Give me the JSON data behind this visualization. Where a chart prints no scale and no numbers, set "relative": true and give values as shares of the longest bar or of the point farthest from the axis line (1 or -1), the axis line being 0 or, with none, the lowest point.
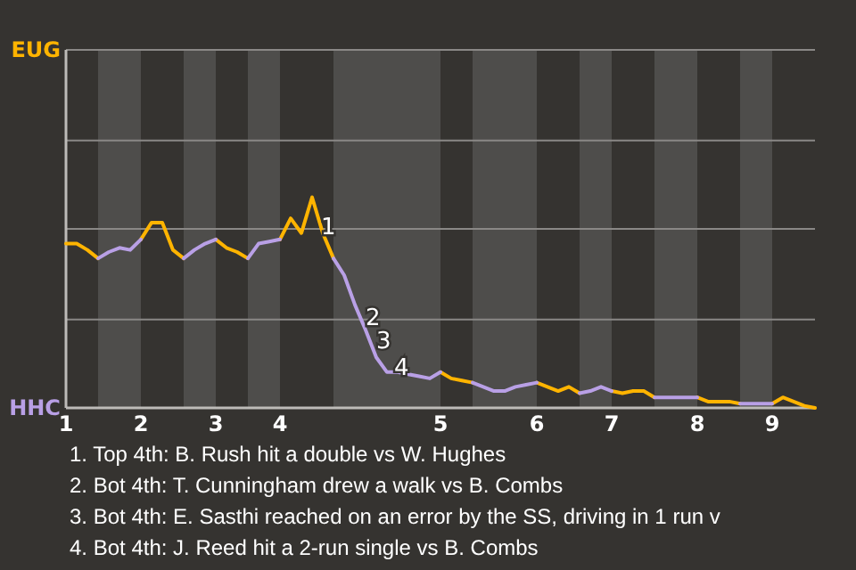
{
  "chart_data": {
    "type": "line",
    "relative": true,
    "categories": [
      "1",
      null,
      null,
      null,
      null,
      null,
      null,
      "2",
      null,
      null,
      null,
      null,
      null,
      null,
      "3",
      null,
      null,
      null,
      null,
      null,
      "4",
      null,
      null,
      null,
      null,
      null,
      null,
      null,
      null,
      null,
      null,
      null,
      null,
      null,
      null,
      "5",
      null,
      null,
      null,
      null,
      null,
      null,
      null,
      null,
      "6",
      null,
      null,
      null,
      null,
      null,
      null,
      "7",
      null,
      null,
      null,
      null,
      null,
      null,
      null,
      "8",
      null,
      null,
      null,
      null,
      null,
      null,
      "9",
      null,
      null,
      null,
      null
    ],
    "series": [
      {
        "name": "EUG",
        "color": "#ffb400",
        "values": [
          0.78,
          0.78,
          0.75,
          0.71,
          null,
          null,
          null,
          0.8,
          0.88,
          0.88,
          0.75,
          0.71,
          null,
          null,
          0.8,
          0.76,
          0.74,
          0.71,
          null,
          null,
          0.8,
          0.9,
          0.83,
          1,
          0.83,
          0.71,
          null,
          null,
          null,
          null,
          null,
          null,
          null,
          null,
          null,
          0.17,
          0.14,
          0.13,
          0.12,
          null,
          null,
          null,
          null,
          null,
          0.12,
          0.1,
          0.08,
          0.1,
          0.07,
          null,
          null,
          0.08,
          0.07,
          0.08,
          0.08,
          0.05,
          null,
          null,
          null,
          0.05,
          0.03,
          0.03,
          0.03,
          0.02,
          null,
          null,
          0.02,
          0.05,
          0.03,
          0.01,
          0
        ]
      },
      {
        "name": "HHC",
        "color": "#b9a0e6",
        "values": [
          null,
          null,
          null,
          0.71,
          0.74,
          0.76,
          0.75,
          0.8,
          null,
          null,
          null,
          0.71,
          0.75,
          0.78,
          0.8,
          null,
          null,
          0.71,
          0.78,
          0.79,
          0.8,
          null,
          null,
          null,
          null,
          0.71,
          0.63,
          0.49,
          0.37,
          0.24,
          0.17,
          0.17,
          0.16,
          0.15,
          0.14,
          0.17,
          null,
          null,
          0.12,
          0.1,
          0.08,
          0.08,
          0.1,
          0.11,
          0.12,
          null,
          null,
          null,
          0.07,
          0.08,
          0.1,
          0.08,
          null,
          null,
          null,
          0.05,
          0.05,
          0.05,
          0.05,
          0.05,
          null,
          null,
          null,
          0.02,
          0.02,
          0.02,
          0.02,
          null,
          null,
          null,
          null
        ]
      }
    ],
    "legend": "left",
    "ref_lines": [
      {
        "axis": "y",
        "value": 0.42,
        "color": "#8a8886"
      },
      {
        "axis": "y",
        "value": 0.85,
        "color": "#8a8886"
      },
      {
        "axis": "y",
        "value": 1.27,
        "color": "#8a8886"
      }
    ],
    "annotations": [
      "1",
      "2",
      "3",
      "4",
      "1. Top 4th: B. Rush hit a double vs W. Hughes",
      "2. Bot 4th: T. Cunningham drew a walk vs B. Combs",
      "3. Bot 4th: E. Sasthi reached on an error by the SS, driving in 1 run v",
      "4. Bot 4th: J. Reed hit a 2-run single vs B. Combs"
    ],
    "marker": "none",
    "line_style": "solid"
  }
}
